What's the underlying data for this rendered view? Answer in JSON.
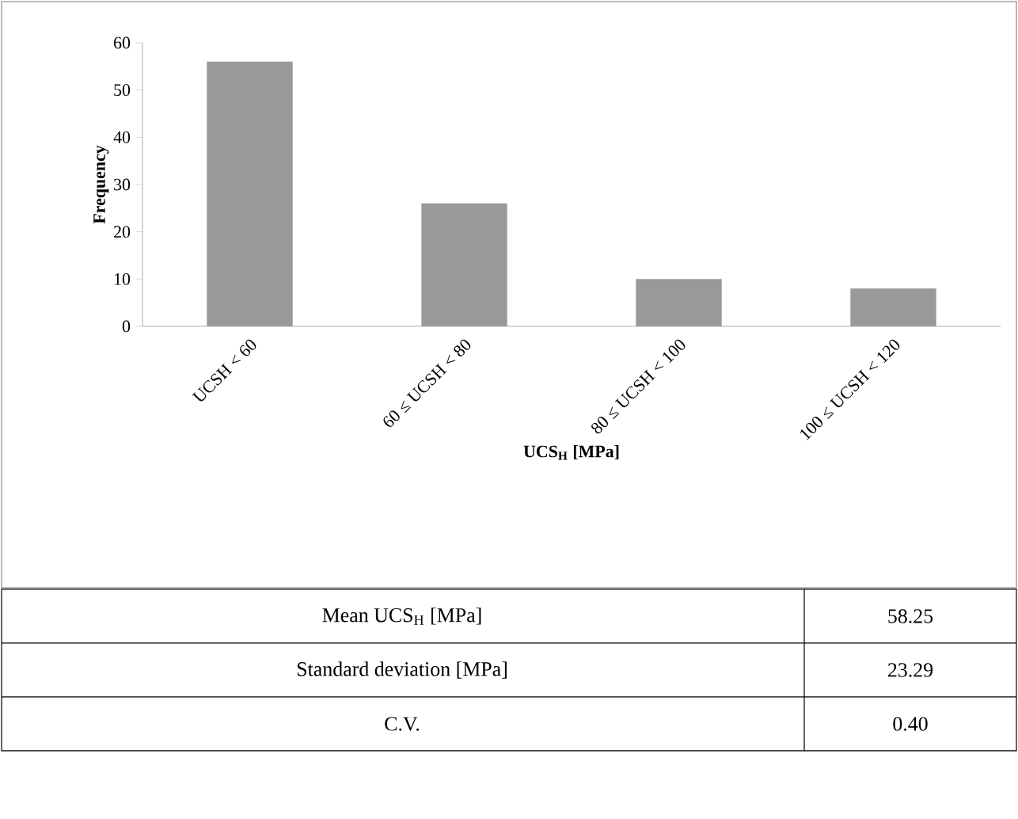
{
  "chart_data": {
    "type": "bar",
    "xlabel": "UCS$_{H}$ [MPa]",
    "ylabel": "Frequency",
    "categories": [
      "UCSH < 60",
      "60 ≤ UCSH < 80",
      "80 ≤ UCSH < 100",
      "100 ≤ UCSH < 120"
    ],
    "values": [
      56,
      26,
      10,
      8
    ],
    "color": "#989a9a",
    "ylim": [
      0,
      60
    ],
    "yticks": [
      0,
      10,
      20,
      30,
      40,
      50,
      60
    ],
    "annotations": [
      "Mean UCS$_{H}$ [MPa]",
      "58.25",
      "Standard deviation [MPa]",
      "23.29",
      "C.V.",
      "0.40"
    ]
  }
}
